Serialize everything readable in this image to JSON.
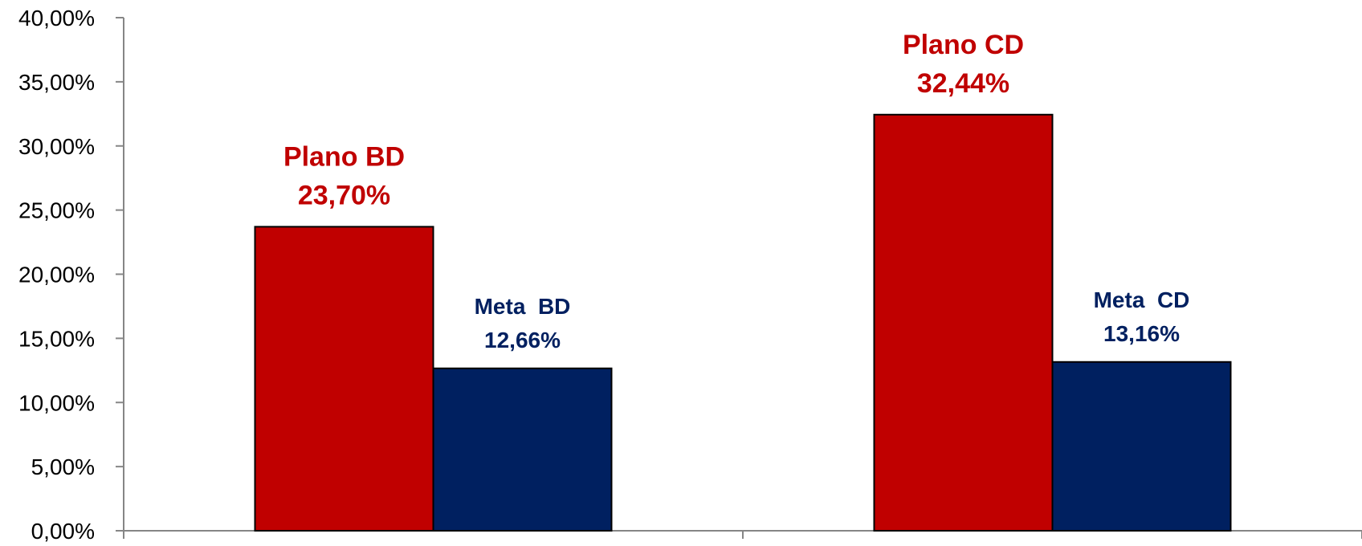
{
  "chart_data": {
    "type": "bar",
    "categories": [
      "BD",
      "CD"
    ],
    "y_ticks": [
      "0,00%",
      "5,00%",
      "10,00%",
      "15,00%",
      "20,00%",
      "25,00%",
      "30,00%",
      "35,00%",
      "40,00%"
    ],
    "ylim": [
      0,
      40
    ],
    "grid": false,
    "legend": "none",
    "bars": [
      {
        "category": "BD",
        "value": 23.7,
        "label_name": "Plano BD",
        "label_value": "23,70%",
        "color": "#C00000"
      },
      {
        "category": "BD",
        "value": 12.66,
        "label_name": "Meta  BD",
        "label_value": "12,66%",
        "color": "#002060"
      },
      {
        "category": "CD",
        "value": 32.44,
        "label_name": "Plano CD",
        "label_value": "32,44%",
        "color": "#C00000"
      },
      {
        "category": "CD",
        "value": 13.16,
        "label_name": "Meta  CD",
        "label_value": "13,16%",
        "color": "#002060"
      }
    ]
  }
}
